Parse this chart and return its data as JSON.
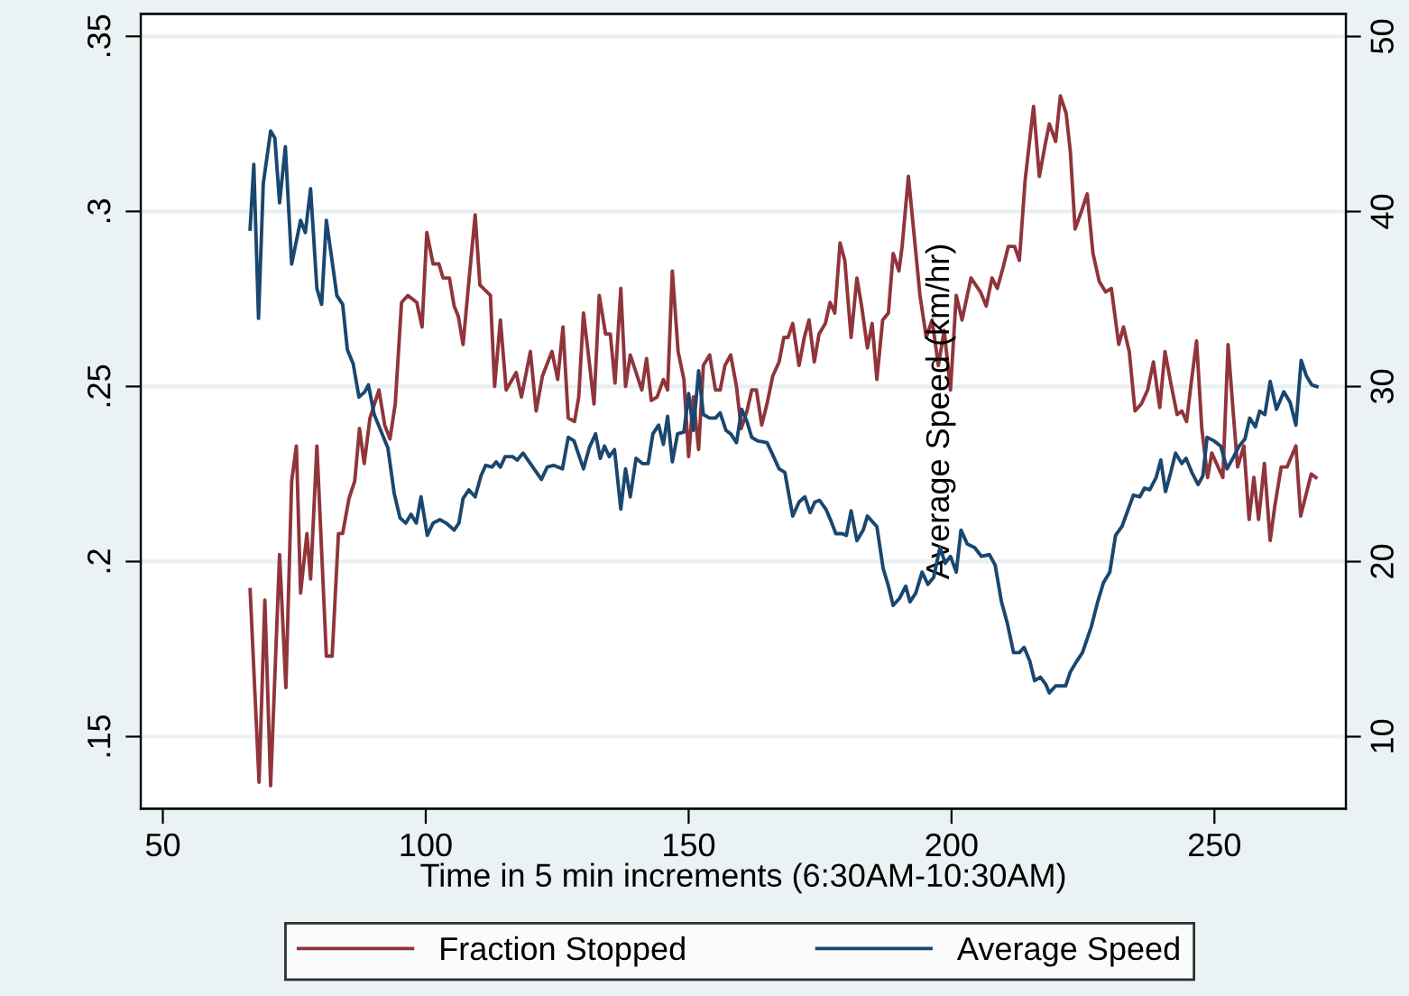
{
  "chart_data": {
    "type": "line",
    "xlabel": "Time in 5 min increments (6:30AM-10:30AM)",
    "y2label": "Average Speed (km/hr)",
    "xlim": [
      45.8,
      275
    ],
    "xticks": [
      50,
      100,
      150,
      200,
      250
    ],
    "ylim": [
      0.1294,
      0.3564
    ],
    "yticks": [
      {
        "value": 0.15,
        "label": ".15"
      },
      {
        "value": 0.2,
        "label": ".2"
      },
      {
        "value": 0.25,
        "label": ".25"
      },
      {
        "value": 0.3,
        "label": ".3"
      },
      {
        "value": 0.35,
        "label": ".35"
      }
    ],
    "y2lim": [
      5.88,
      51.29
    ],
    "y2ticks": [
      10,
      20,
      30,
      40,
      50
    ],
    "grid": "y",
    "legend": "bottom",
    "marker": "none",
    "line_style": "solid",
    "series": [
      {
        "name": "Fraction Stopped",
        "color": "#90353b",
        "x": [
          66.6,
          68.3,
          69.4,
          70.5,
          72.2,
          73.4,
          74.5,
          75.4,
          76.2,
          77.4,
          78.1,
          79.3,
          81.1,
          82.2,
          83.4,
          84.2,
          85.4,
          86.5,
          87.4,
          88.3,
          89.4,
          91.1,
          92.2,
          93.2,
          94.2,
          95.4,
          96.6,
          98.3,
          99.3,
          100.2,
          101.4,
          102.5,
          103.3,
          104.5,
          105.4,
          106.2,
          107.1,
          108.2,
          109.4,
          110.3,
          112.3,
          113.1,
          114.2,
          115.3,
          117.2,
          118.2,
          119.9,
          121.0,
          122.2,
          124.0,
          125.1,
          126.1,
          127.1,
          128.3,
          129.1,
          130.0,
          131.1,
          132.0,
          133.0,
          134.2,
          135.1,
          136.0,
          137.1,
          138.0,
          138.9,
          140.0,
          141.1,
          142.0,
          142.9,
          144.0,
          145.2,
          146.0,
          146.9,
          148.0,
          149.1,
          150.0,
          150.9,
          151.9,
          152.8,
          154.0,
          155.1,
          156.0,
          156.9,
          158.0,
          159.1,
          160.0,
          161.1,
          162.0,
          162.9,
          163.9,
          164.9,
          166.0,
          167.2,
          168.1,
          168.9,
          169.8,
          171.0,
          172.0,
          172.9,
          173.9,
          174.8,
          176.0,
          176.9,
          177.8,
          178.8,
          179.7,
          180.9,
          182.0,
          182.9,
          184.0,
          184.9,
          185.8,
          186.9,
          188.0,
          188.9,
          190.0,
          190.6,
          191.8,
          192.9,
          194.0,
          195.2,
          196.3,
          197.5,
          198.6,
          199.8,
          200.9,
          202.0,
          203.7,
          205.5,
          206.6,
          207.7,
          208.7,
          209.8,
          210.8,
          212.0,
          212.9,
          214.0,
          215.6,
          216.7,
          217.8,
          218.6,
          219.8,
          220.7,
          221.8,
          222.6,
          223.5,
          224.7,
          225.8,
          226.9,
          228.1,
          229.3,
          230.4,
          231.8,
          232.7,
          233.8,
          234.9,
          236.1,
          237.3,
          238.4,
          239.6,
          240.6,
          241.7,
          242.9,
          243.8,
          244.7,
          245.5,
          246.6,
          247.6,
          248.7,
          249.5,
          250.7,
          251.6,
          252.6,
          253.5,
          254.4,
          255.6,
          256.6,
          257.5,
          258.4,
          259.5,
          260.6,
          261.5,
          262.7,
          263.8,
          265.5,
          266.4,
          268.4,
          269.3
        ],
        "values": [
          0.192,
          0.137,
          0.189,
          0.136,
          0.202,
          0.164,
          0.223,
          0.233,
          0.191,
          0.208,
          0.195,
          0.233,
          0.173,
          0.173,
          0.208,
          0.208,
          0.218,
          0.223,
          0.238,
          0.228,
          0.241,
          0.249,
          0.239,
          0.235,
          0.245,
          0.274,
          0.276,
          0.274,
          0.267,
          0.294,
          0.285,
          0.285,
          0.281,
          0.281,
          0.273,
          0.27,
          0.262,
          0.28,
          0.299,
          0.279,
          0.276,
          0.25,
          0.269,
          0.249,
          0.254,
          0.247,
          0.26,
          0.243,
          0.253,
          0.26,
          0.252,
          0.267,
          0.241,
          0.24,
          0.247,
          0.271,
          0.257,
          0.245,
          0.276,
          0.265,
          0.265,
          0.251,
          0.278,
          0.25,
          0.259,
          0.254,
          0.249,
          0.258,
          0.246,
          0.247,
          0.252,
          0.249,
          0.283,
          0.26,
          0.252,
          0.23,
          0.247,
          0.232,
          0.256,
          0.259,
          0.249,
          0.249,
          0.256,
          0.259,
          0.25,
          0.238,
          0.243,
          0.249,
          0.249,
          0.239,
          0.245,
          0.253,
          0.257,
          0.264,
          0.264,
          0.268,
          0.256,
          0.264,
          0.269,
          0.257,
          0.265,
          0.268,
          0.274,
          0.271,
          0.291,
          0.286,
          0.264,
          0.281,
          0.273,
          0.261,
          0.268,
          0.252,
          0.269,
          0.271,
          0.288,
          0.283,
          0.29,
          0.31,
          0.293,
          0.276,
          0.264,
          0.269,
          0.256,
          0.266,
          0.249,
          0.276,
          0.269,
          0.281,
          0.277,
          0.273,
          0.281,
          0.278,
          0.284,
          0.29,
          0.29,
          0.286,
          0.309,
          0.33,
          0.31,
          0.319,
          0.325,
          0.32,
          0.333,
          0.328,
          0.317,
          0.295,
          0.3,
          0.305,
          0.288,
          0.28,
          0.277,
          0.278,
          0.262,
          0.267,
          0.26,
          0.243,
          0.245,
          0.249,
          0.257,
          0.244,
          0.26,
          0.251,
          0.242,
          0.243,
          0.24,
          0.25,
          0.263,
          0.238,
          0.224,
          0.231,
          0.227,
          0.224,
          0.262,
          0.244,
          0.227,
          0.233,
          0.212,
          0.224,
          0.212,
          0.228,
          0.206,
          0.216,
          0.227,
          0.227,
          0.233,
          0.213,
          0.225,
          0.224
        ]
      },
      {
        "name": "Average Speed",
        "color": "#1a476f",
        "axis": "y2",
        "x": [
          66.6,
          67.3,
          68.2,
          69.1,
          70.5,
          71.3,
          72.2,
          73.3,
          74.5,
          76.2,
          77.1,
          78.1,
          79.3,
          80.2,
          81.1,
          81.9,
          83.1,
          84.2,
          85.1,
          86.2,
          87.3,
          88.4,
          89.1,
          90.2,
          91.7,
          92.8,
          94.0,
          95.1,
          96.2,
          97.2,
          98.2,
          99.1,
          100.3,
          101.4,
          102.7,
          103.9,
          105.4,
          106.3,
          107.1,
          108.2,
          109.4,
          110.5,
          111.4,
          112.6,
          113.4,
          114.2,
          115.1,
          116.5,
          117.4,
          118.5,
          119.9,
          122.0,
          123.1,
          124.3,
          126.0,
          127.1,
          128.2,
          130.0,
          131.1,
          132.3,
          133.2,
          134.0,
          134.9,
          135.9,
          137.1,
          138.0,
          138.9,
          140.0,
          141.2,
          142.3,
          143.2,
          144.3,
          145.2,
          146.0,
          146.9,
          147.9,
          149.1,
          150.0,
          150.9,
          151.9,
          152.8,
          154.0,
          155.1,
          156.0,
          157.1,
          158.0,
          159.1,
          160.1,
          161.1,
          162.0,
          163.1,
          164.9,
          166.0,
          167.2,
          168.3,
          169.8,
          171.0,
          172.1,
          173.1,
          174.0,
          174.9,
          176.1,
          177.1,
          178.0,
          179.2,
          180.0,
          180.9,
          182.0,
          183.2,
          184.0,
          184.9,
          185.8,
          187.0,
          188.0,
          188.9,
          190.1,
          191.3,
          192.1,
          193.2,
          194.4,
          195.5,
          196.6,
          197.8,
          198.8,
          199.8,
          200.9,
          201.8,
          203.0,
          204.4,
          205.7,
          207.2,
          208.3,
          209.5,
          210.6,
          211.8,
          212.9,
          213.8,
          214.9,
          215.8,
          216.9,
          217.9,
          218.6,
          219.8,
          220.9,
          221.7,
          222.6,
          223.8,
          224.9,
          226.6,
          227.8,
          228.9,
          230.1,
          231.2,
          232.4,
          233.5,
          234.6,
          235.8,
          236.7,
          237.7,
          238.9,
          239.8,
          240.7,
          241.7,
          242.6,
          243.8,
          244.6,
          245.7,
          246.9,
          247.8,
          248.6,
          249.9,
          251.2,
          252.4,
          253.5,
          254.7,
          255.8,
          256.7,
          257.8,
          258.6,
          259.6,
          260.6,
          261.8,
          263.2,
          264.4,
          265.5,
          266.5,
          267.5,
          268.5,
          269.5
        ],
        "values": [
          39.0,
          42.7,
          33.9,
          41.6,
          44.6,
          44.2,
          40.5,
          43.7,
          37.0,
          39.5,
          38.8,
          41.3,
          35.6,
          34.7,
          39.5,
          37.8,
          35.2,
          34.7,
          32.1,
          31.3,
          29.4,
          29.7,
          30.1,
          28.4,
          27.3,
          26.5,
          23.9,
          22.5,
          22.2,
          22.7,
          22.2,
          23.7,
          21.5,
          22.2,
          22.4,
          22.2,
          21.8,
          22.2,
          23.6,
          24.1,
          23.7,
          24.9,
          25.5,
          25.4,
          25.7,
          25.4,
          26.0,
          26.0,
          25.8,
          26.2,
          25.6,
          24.7,
          25.4,
          25.5,
          25.3,
          27.1,
          26.9,
          25.3,
          26.5,
          27.3,
          25.9,
          26.6,
          26.0,
          26.4,
          23.0,
          25.3,
          23.7,
          25.9,
          25.6,
          25.6,
          27.3,
          27.8,
          26.7,
          28.3,
          25.7,
          27.3,
          27.4,
          29.6,
          27.5,
          30.9,
          28.4,
          28.2,
          28.2,
          28.5,
          27.5,
          27.3,
          26.8,
          28.7,
          28.0,
          27.1,
          26.9,
          26.8,
          26.1,
          25.3,
          25.1,
          22.6,
          23.4,
          23.7,
          22.8,
          23.4,
          23.5,
          23.0,
          22.3,
          21.6,
          21.6,
          21.5,
          22.9,
          21.2,
          21.8,
          22.6,
          22.3,
          22.0,
          19.6,
          18.6,
          17.5,
          17.9,
          18.6,
          17.7,
          18.2,
          19.4,
          18.7,
          19.1,
          20.8,
          19.9,
          20.3,
          19.4,
          21.8,
          21.0,
          20.8,
          20.3,
          20.4,
          19.8,
          17.7,
          16.5,
          14.8,
          14.8,
          15.1,
          14.3,
          13.2,
          13.4,
          13.0,
          12.5,
          12.9,
          12.9,
          12.9,
          13.7,
          14.3,
          14.8,
          16.3,
          17.7,
          18.8,
          19.4,
          21.5,
          22.0,
          22.9,
          23.8,
          23.7,
          24.2,
          24.1,
          24.8,
          25.8,
          24.0,
          25.1,
          26.2,
          25.6,
          25.9,
          25.1,
          24.4,
          24.9,
          27.1,
          26.9,
          26.6,
          25.3,
          25.9,
          26.6,
          27.0,
          28.2,
          27.7,
          28.6,
          28.4,
          30.3,
          28.7,
          29.7,
          29.1,
          27.8,
          31.5,
          30.6,
          30.1,
          30.0
        ]
      }
    ]
  }
}
